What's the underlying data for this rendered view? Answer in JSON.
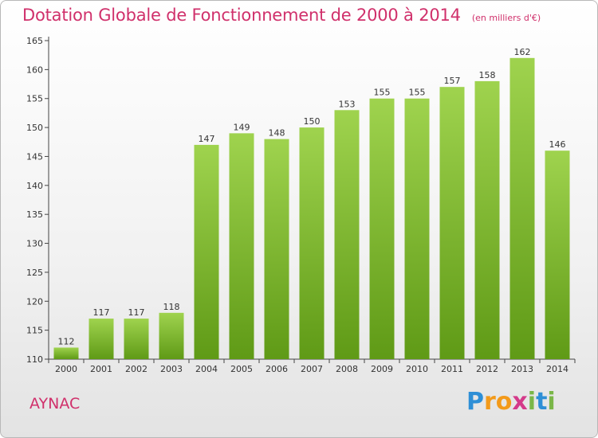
{
  "header": {
    "title": "Dotation Globale de Fonctionnement de 2000 à 2014",
    "unit": "(en milliers d'€)"
  },
  "commune": "AYNAC",
  "logo": {
    "letters": [
      "P",
      "r",
      "o",
      "x",
      "i",
      "t",
      "i"
    ],
    "colors": [
      "#2e8fd6",
      "#f39a1a",
      "#f39a1a",
      "#d43a8a",
      "#7ab648",
      "#2e8fd6",
      "#7ab648"
    ]
  },
  "colors": {
    "accent": "#d0306b",
    "bar_top": "#9fd34e",
    "bar_bottom": "#5f9a16"
  },
  "chart_data": {
    "type": "bar",
    "categories": [
      "2000",
      "2001",
      "2002",
      "2003",
      "2004",
      "2005",
      "2006",
      "2007",
      "2008",
      "2009",
      "2010",
      "2011",
      "2012",
      "2013",
      "2014"
    ],
    "values": [
      112,
      117,
      117,
      118,
      147,
      149,
      148,
      150,
      153,
      155,
      155,
      157,
      158,
      162,
      146
    ],
    "ylim": [
      110,
      165
    ],
    "yticks": [
      110,
      115,
      120,
      125,
      130,
      135,
      140,
      145,
      150,
      155,
      160,
      165
    ],
    "grid": false,
    "title": "Dotation Globale de Fonctionnement de 2000 à 2014",
    "xlabel": "",
    "ylabel": ""
  }
}
